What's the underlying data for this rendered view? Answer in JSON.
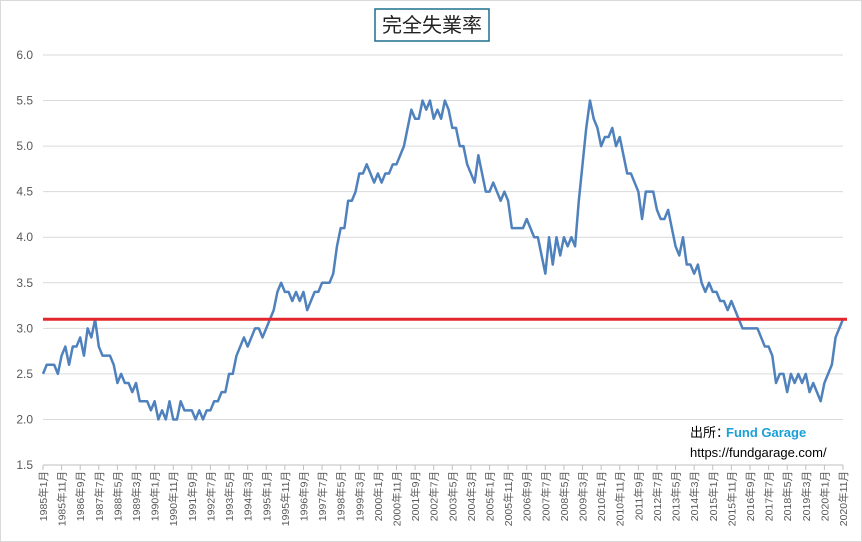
{
  "chart_data": {
    "type": "line",
    "title": "完全失業率",
    "categories": [
      "1985年1月",
      null,
      null,
      null,
      null,
      "1985年11月",
      null,
      null,
      null,
      null,
      "1986年9月",
      null,
      null,
      null,
      null,
      "1987年7月",
      null,
      null,
      null,
      null,
      "1988年5月",
      null,
      null,
      null,
      null,
      "1989年3月",
      null,
      null,
      null,
      null,
      "1990年1月",
      null,
      null,
      null,
      null,
      "1990年11月",
      null,
      null,
      null,
      null,
      "1991年9月",
      null,
      null,
      null,
      null,
      "1992年7月",
      null,
      null,
      null,
      null,
      "1993年5月",
      null,
      null,
      null,
      null,
      "1994年3月",
      null,
      null,
      null,
      null,
      "1995年1月",
      null,
      null,
      null,
      null,
      "1995年11月",
      null,
      null,
      null,
      null,
      "1996年9月",
      null,
      null,
      null,
      null,
      "1997年7月",
      null,
      null,
      null,
      null,
      "1998年5月",
      null,
      null,
      null,
      null,
      "1999年3月",
      null,
      null,
      null,
      null,
      "2000年1月",
      null,
      null,
      null,
      null,
      "2000年11月",
      null,
      null,
      null,
      null,
      "2001年9月",
      null,
      null,
      null,
      null,
      "2002年7月",
      null,
      null,
      null,
      null,
      "2003年5月",
      null,
      null,
      null,
      null,
      "2004年3月",
      null,
      null,
      null,
      null,
      "2005年1月",
      null,
      null,
      null,
      null,
      "2005年11月",
      null,
      null,
      null,
      null,
      "2006年9月",
      null,
      null,
      null,
      null,
      "2007年7月",
      null,
      null,
      null,
      null,
      "2008年5月",
      null,
      null,
      null,
      null,
      "2009年3月",
      null,
      null,
      null,
      null,
      "2010年1月",
      null,
      null,
      null,
      null,
      "2010年11月",
      null,
      null,
      null,
      null,
      "2011年9月",
      null,
      null,
      null,
      null,
      "2012年7月",
      null,
      null,
      null,
      null,
      "2013年5月",
      null,
      null,
      null,
      null,
      "2014年3月",
      null,
      null,
      null,
      null,
      "2015年1月",
      null,
      null,
      null,
      null,
      "2015年11月",
      null,
      null,
      null,
      null,
      "2016年9月",
      null,
      null,
      null,
      null,
      "2017年7月",
      null,
      null,
      null,
      null,
      "2018年5月",
      null,
      null,
      null,
      null,
      "2019年3月",
      null,
      null,
      null,
      null,
      "2020年1月",
      null,
      null,
      null,
      null,
      "2020年11月"
    ],
    "series": [
      {
        "name": "完全失業率",
        "color": "#4f81bd",
        "values": [
          2.5,
          2.6,
          2.6,
          2.6,
          2.5,
          2.7,
          2.8,
          2.6,
          2.8,
          2.8,
          2.9,
          2.7,
          3.0,
          2.9,
          3.1,
          2.8,
          2.7,
          2.7,
          2.7,
          2.6,
          2.4,
          2.5,
          2.4,
          2.4,
          2.3,
          2.4,
          2.2,
          2.2,
          2.2,
          2.1,
          2.2,
          2.0,
          2.1,
          2.0,
          2.2,
          2.0,
          2.0,
          2.2,
          2.1,
          2.1,
          2.1,
          2.0,
          2.1,
          2.0,
          2.1,
          2.1,
          2.2,
          2.2,
          2.3,
          2.3,
          2.5,
          2.5,
          2.7,
          2.8,
          2.9,
          2.8,
          2.9,
          3.0,
          3.0,
          2.9,
          3.0,
          3.1,
          3.2,
          3.4,
          3.5,
          3.4,
          3.4,
          3.3,
          3.4,
          3.3,
          3.4,
          3.2,
          3.3,
          3.4,
          3.4,
          3.5,
          3.5,
          3.5,
          3.6,
          3.9,
          4.1,
          4.1,
          4.4,
          4.4,
          4.5,
          4.7,
          4.7,
          4.8,
          4.7,
          4.6,
          4.7,
          4.6,
          4.7,
          4.7,
          4.8,
          4.8,
          4.9,
          5.0,
          5.2,
          5.4,
          5.3,
          5.3,
          5.5,
          5.4,
          5.5,
          5.3,
          5.4,
          5.3,
          5.5,
          5.4,
          5.2,
          5.2,
          5.0,
          5.0,
          4.8,
          4.7,
          4.6,
          4.9,
          4.7,
          4.5,
          4.5,
          4.6,
          4.5,
          4.4,
          4.5,
          4.4,
          4.1,
          4.1,
          4.1,
          4.1,
          4.2,
          4.1,
          4.0,
          4.0,
          3.8,
          3.6,
          4.0,
          3.7,
          4.0,
          3.8,
          4.0,
          3.9,
          4.0,
          3.9,
          4.4,
          4.8,
          5.2,
          5.5,
          5.3,
          5.2,
          5.0,
          5.1,
          5.1,
          5.2,
          5.0,
          5.1,
          4.9,
          4.7,
          4.7,
          4.6,
          4.5,
          4.2,
          4.5,
          4.5,
          4.5,
          4.3,
          4.2,
          4.2,
          4.3,
          4.1,
          3.9,
          3.8,
          4.0,
          3.7,
          3.7,
          3.6,
          3.7,
          3.5,
          3.4,
          3.5,
          3.4,
          3.4,
          3.3,
          3.3,
          3.2,
          3.3,
          3.2,
          3.1,
          3.0,
          3.0,
          3.0,
          3.0,
          3.0,
          2.9,
          2.8,
          2.8,
          2.7,
          2.4,
          2.5,
          2.5,
          2.3,
          2.5,
          2.4,
          2.5,
          2.4,
          2.5,
          2.3,
          2.4,
          2.3,
          2.2,
          2.4,
          2.5,
          2.6,
          2.9,
          3.0,
          3.1
        ]
      }
    ],
    "reference_line": {
      "value": 3.1,
      "color": "#e3262b"
    },
    "ylim": [
      1.5,
      6.0
    ],
    "yticks": [
      1.5,
      {
        "value": 2.0,
        "label": "2.0"
      },
      2.5,
      {
        "value": 3.0,
        "label": "3.0"
      },
      3.5,
      {
        "value": 4.0,
        "label": "4.0"
      },
      4.5,
      {
        "value": 5.0,
        "label": "5.0"
      },
      5.5,
      {
        "value": 6.0,
        "label": "6.0"
      }
    ],
    "grid": true,
    "source_label": "出所：",
    "source_name": "Fund Garage",
    "source_url": "https://fundgarage.com/"
  }
}
